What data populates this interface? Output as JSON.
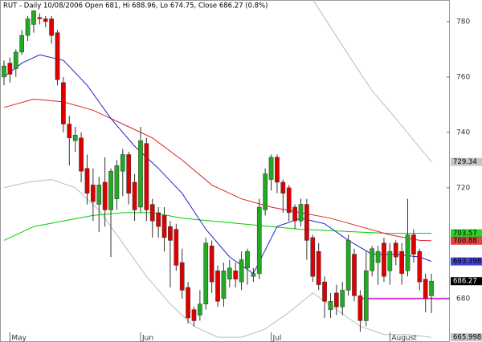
{
  "chart_data": {
    "type": "candlestick",
    "title": "RUT - Daily 10/08/2006 Open 681, Hi 688.96, Lo 674.75, Close 686.27 (0.8%)",
    "categories": [
      null,
      "May",
      null,
      null,
      null,
      null,
      null,
      null,
      null,
      null,
      null,
      null,
      null,
      null,
      null,
      null,
      null,
      null,
      null,
      null,
      null,
      null,
      null,
      "Jun",
      null,
      null,
      null,
      null,
      null,
      null,
      null,
      null,
      null,
      null,
      null,
      null,
      null,
      null,
      null,
      null,
      null,
      null,
      null,
      null,
      null,
      "Jul",
      null,
      null,
      null,
      null,
      null,
      null,
      null,
      null,
      null,
      null,
      null,
      null,
      null,
      null,
      null,
      null,
      null,
      null,
      null,
      "August",
      null,
      null,
      null,
      null,
      null,
      null,
      null
    ],
    "open": [
      760,
      765,
      763,
      769,
      775,
      779,
      781.5,
      781,
      781,
      776,
      758,
      743,
      737,
      738,
      727,
      721,
      714,
      722,
      712,
      716,
      726,
      732,
      722,
      713,
      736,
      714,
      711,
      710,
      706,
      705,
      693,
      684,
      676,
      674,
      678,
      699,
      690,
      680,
      687,
      690,
      686,
      691,
      688,
      689,
      712,
      723,
      731,
      722,
      720,
      713,
      708,
      714,
      702,
      697,
      686,
      676,
      682,
      677,
      683,
      696,
      681,
      672,
      690,
      693,
      700,
      690,
      700,
      697,
      690,
      703,
      697,
      687,
      681
    ],
    "high": [
      766,
      767,
      770,
      777,
      782,
      785,
      783,
      782,
      782,
      777,
      760,
      746,
      742,
      740,
      732,
      727,
      724,
      731,
      727,
      730,
      734,
      733,
      725,
      742,
      738,
      716,
      713,
      713,
      708,
      707,
      698,
      686,
      677,
      683,
      702,
      701,
      692,
      693,
      694,
      693,
      697,
      698,
      691,
      716,
      727,
      732,
      732,
      723,
      721,
      714,
      716,
      716,
      703,
      700,
      688,
      682,
      685,
      686,
      703,
      698,
      683,
      697,
      699,
      699,
      702,
      700,
      701,
      700,
      716,
      705,
      698,
      689,
      688.96
    ],
    "low": [
      757,
      758,
      760,
      768,
      773,
      776,
      779,
      778,
      772,
      757,
      740,
      728,
      733,
      722,
      714,
      708,
      704,
      706,
      695,
      712,
      717,
      714,
      708,
      711,
      708,
      702,
      702,
      697,
      684,
      690,
      680,
      671,
      670,
      672,
      676,
      682,
      677,
      677,
      684,
      684,
      683,
      685,
      686,
      687,
      710,
      719,
      718,
      711,
      708,
      705,
      706,
      694,
      686,
      683,
      673,
      673,
      674,
      674,
      681,
      679,
      668,
      670,
      688,
      685,
      686,
      685,
      692,
      685,
      688,
      693,
      683,
      675,
      674.75
    ],
    "close": [
      764,
      761,
      769,
      775,
      781,
      784,
      781,
      780,
      775,
      759,
      743,
      738,
      739,
      726,
      718,
      715,
      721,
      712,
      726,
      728,
      732,
      718,
      712,
      737,
      712,
      708,
      706,
      702,
      701,
      692,
      683,
      673,
      672,
      678,
      700,
      686,
      679,
      690,
      691,
      687,
      694,
      697,
      689,
      713,
      725,
      731,
      722,
      718,
      711,
      708,
      714,
      701,
      688,
      685,
      679,
      679,
      677,
      683,
      701,
      681,
      672,
      690,
      698,
      697,
      688,
      697,
      695,
      689,
      703,
      696,
      686,
      680,
      686.27
    ],
    "up_color": "#22aa22",
    "down_color": "#dd0000",
    "lines": [
      {
        "color": "#bbbbbb",
        "x": [
          52,
          55,
          58,
          62,
          66,
          72
        ],
        "values": [
          788,
          778,
          768,
          755,
          745,
          729.34
        ]
      },
      {
        "color": "#bbbbbb",
        "x": [
          0,
          4,
          8,
          12,
          16,
          20,
          24,
          28,
          32,
          36,
          40,
          44,
          48,
          52,
          56,
          60,
          64,
          68,
          72
        ],
        "values": [
          720,
          722,
          723,
          720,
          712,
          700,
          688,
          678,
          670,
          666,
          666,
          669,
          675,
          682,
          676,
          670,
          667,
          667,
          665.998
        ]
      },
      {
        "color": "#00cc00",
        "x": [
          0,
          5,
          10,
          15,
          20,
          25,
          30,
          35,
          40,
          45,
          50,
          55,
          60,
          65,
          72
        ],
        "values": [
          701,
          706,
          708,
          710,
          711,
          711,
          709,
          708,
          707,
          706,
          705,
          704.5,
          704,
          703.5,
          703.57
        ]
      },
      {
        "color": "#dd2222",
        "x": [
          0,
          5,
          10,
          15,
          20,
          25,
          30,
          35,
          40,
          45,
          50,
          55,
          60,
          65,
          70,
          72
        ],
        "values": [
          749,
          752,
          751,
          748,
          743,
          738,
          730,
          721,
          716,
          713,
          711,
          709,
          706,
          703,
          701,
          700.88
        ]
      },
      {
        "color": "#2222cc",
        "x": [
          0,
          3,
          6,
          10,
          14,
          18,
          22,
          26,
          30,
          34,
          38,
          42,
          46,
          50,
          54,
          58,
          62,
          66,
          70,
          72
        ],
        "values": [
          760,
          765,
          768,
          766,
          757,
          745,
          735,
          727,
          718,
          705,
          695,
          689,
          706,
          709,
          707,
          701,
          696,
          696,
          695,
          693.398
        ]
      }
    ],
    "hline": {
      "value": 680,
      "color": "#dd33dd",
      "from": 60
    },
    "ylim": [
      664.3,
      787.8
    ],
    "yticks": [
      680,
      720,
      740,
      760,
      780
    ]
  }
}
